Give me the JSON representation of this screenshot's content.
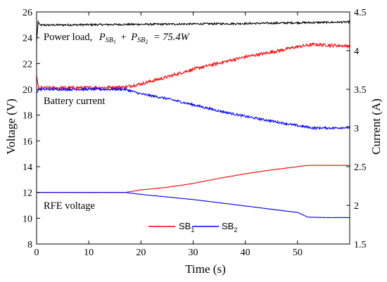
{
  "chart_data": {
    "type": "line",
    "xlabel": "Time (s)",
    "ylabel_left": "Voltage (V)",
    "ylabel_right": "Current (A)",
    "xlim": [
      0,
      60
    ],
    "ylim_left": [
      8,
      26
    ],
    "ylim_right": [
      1.5,
      4.5
    ],
    "xticks": [
      "0",
      "10",
      "20",
      "30",
      "40",
      "50"
    ],
    "yticks_left": [
      "8",
      "10",
      "12",
      "14",
      "16",
      "18",
      "20",
      "22",
      "24",
      "26"
    ],
    "yticks_right": [
      "1.5",
      "2",
      "2.5",
      "3",
      "3.5",
      "4",
      "4.5"
    ],
    "annotations": {
      "power_load": "Power load,",
      "power_formula_a": "P",
      "power_sub_a": "SB",
      "power_sub_a_idx": "1",
      "power_plus": "+",
      "power_formula_b": "P",
      "power_sub_b": "SB",
      "power_sub_b_idx": "2",
      "power_eq": "= 75.4W",
      "battery_current": "Battery current",
      "rfe_voltage": "RFE voltage"
    },
    "legend": {
      "placement": "bottom-right",
      "entries": [
        {
          "name": "SB",
          "sub": "1",
          "color": "#ff0000"
        },
        {
          "name": "SB",
          "sub": "2",
          "color": "#0000ff"
        }
      ]
    },
    "series": [
      {
        "id": "power_load",
        "axis": "right",
        "color": "#000000",
        "noise": 0.012,
        "x": [
          0,
          0.3,
          0.6,
          10,
          20,
          30,
          40,
          50,
          60
        ],
        "y": [
          4.12,
          4.38,
          4.33,
          4.335,
          4.34,
          4.345,
          4.35,
          4.36,
          4.37
        ]
      },
      {
        "id": "sb1_current",
        "axis": "right",
        "color": "#ff0000",
        "noise": 0.02,
        "x": [
          0,
          0.4,
          0.8,
          10,
          17,
          20,
          25,
          30,
          35,
          40,
          45,
          50,
          53,
          56,
          60
        ],
        "y": [
          3.68,
          3.5,
          3.52,
          3.52,
          3.53,
          3.57,
          3.66,
          3.76,
          3.84,
          3.92,
          3.98,
          4.05,
          4.08,
          4.07,
          4.06
        ]
      },
      {
        "id": "sb2_current",
        "axis": "right",
        "color": "#0000ff",
        "noise": 0.015,
        "x": [
          0,
          0.5,
          10,
          17,
          20,
          25,
          30,
          35,
          40,
          45,
          50,
          53,
          57,
          60
        ],
        "y": [
          3.45,
          3.5,
          3.5,
          3.5,
          3.44,
          3.38,
          3.3,
          3.22,
          3.15,
          3.09,
          3.03,
          3.0,
          3.0,
          3.01
        ]
      },
      {
        "id": "sb1_voltage",
        "axis": "left",
        "color": "#ff0000",
        "noise": 0.01,
        "x": [
          0,
          17,
          20,
          25,
          30,
          35,
          40,
          45,
          50,
          52,
          56,
          60
        ],
        "y": [
          12,
          12,
          12.2,
          12.4,
          12.7,
          13.1,
          13.45,
          13.75,
          14.0,
          14.1,
          14.1,
          14.1
        ]
      },
      {
        "id": "sb2_voltage",
        "axis": "left",
        "color": "#0000ff",
        "noise": 0.01,
        "x": [
          0,
          17,
          20,
          25,
          30,
          35,
          40,
          45,
          50,
          52,
          56,
          60
        ],
        "y": [
          12,
          12,
          11.85,
          11.65,
          11.45,
          11.2,
          10.95,
          10.7,
          10.45,
          10.08,
          10.05,
          10.05
        ]
      }
    ]
  }
}
